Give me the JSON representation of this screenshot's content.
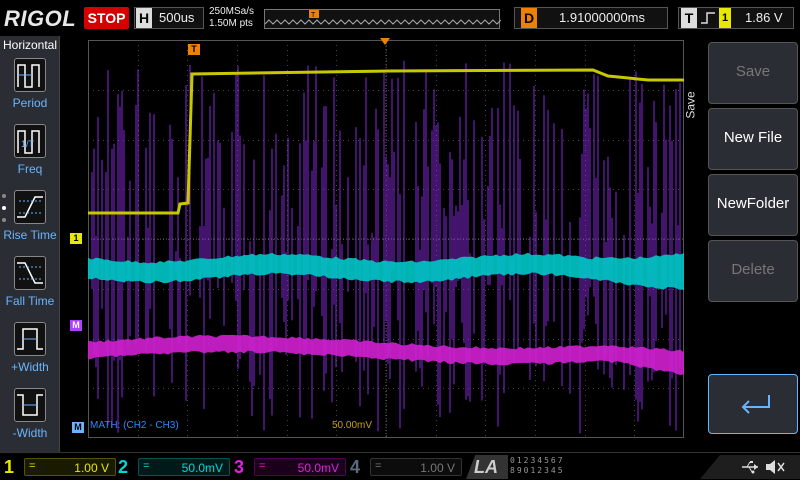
{
  "topbar": {
    "brand": "RIGOL",
    "run_status": "STOP",
    "timebase": {
      "letter": "H",
      "value": "500us"
    },
    "sample_rate": "250MSa/s",
    "memory_depth": "1.50M pts",
    "delay": {
      "letter": "D",
      "value": "1.91000000ms"
    },
    "trigger": {
      "letter": "T",
      "source": "1",
      "level": "1.86 V"
    }
  },
  "left_menu": {
    "title": "Horizontal",
    "items": [
      {
        "label": "Period",
        "icon": "period-measure-icon"
      },
      {
        "label": "Freq",
        "icon": "frequency-measure-icon"
      },
      {
        "label": "Rise Time",
        "icon": "rise-time-icon"
      },
      {
        "label": "Fall Time",
        "icon": "fall-time-icon"
      },
      {
        "label": "+Width",
        "icon": "positive-width-icon"
      },
      {
        "label": "-Width",
        "icon": "negative-width-icon"
      }
    ]
  },
  "screen": {
    "math_label": "MATH:  (CH2 - CH3)",
    "math_scale": "50.00mV",
    "markers": {
      "trigger_pos": "T",
      "ch1": "1",
      "math": "M",
      "trigger_level": "T",
      "math_bottom": "M"
    }
  },
  "right_menu": {
    "title": "Save",
    "buttons": [
      {
        "label": "Save",
        "enabled": false
      },
      {
        "label": "New File",
        "enabled": true
      },
      {
        "label": "NewFolder",
        "enabled": true
      },
      {
        "label": "Delete",
        "enabled": false
      }
    ],
    "return_icon": "return-arrow-icon"
  },
  "channels": [
    {
      "num": "1",
      "coupling": "=",
      "scale": "1.00 V",
      "color": "#e8e800",
      "active": true
    },
    {
      "num": "2",
      "coupling": "=",
      "scale": "50.0mV",
      "color": "#00d8d8",
      "active": true
    },
    {
      "num": "3",
      "coupling": "=",
      "scale": "50.0mV",
      "color": "#e020e0",
      "active": true
    },
    {
      "num": "4",
      "coupling": "=",
      "scale": "1.00 V",
      "color": "#6a8ab4",
      "active": false
    }
  ],
  "la": {
    "label": "LA",
    "digits_row1": "01234567",
    "digits_row2": "89012345"
  },
  "colors": {
    "ch1": "#c8c800",
    "ch2": "#00c8c8",
    "ch3": "#d020d0",
    "math": "#9a30ff",
    "accent": "#f08000"
  }
}
